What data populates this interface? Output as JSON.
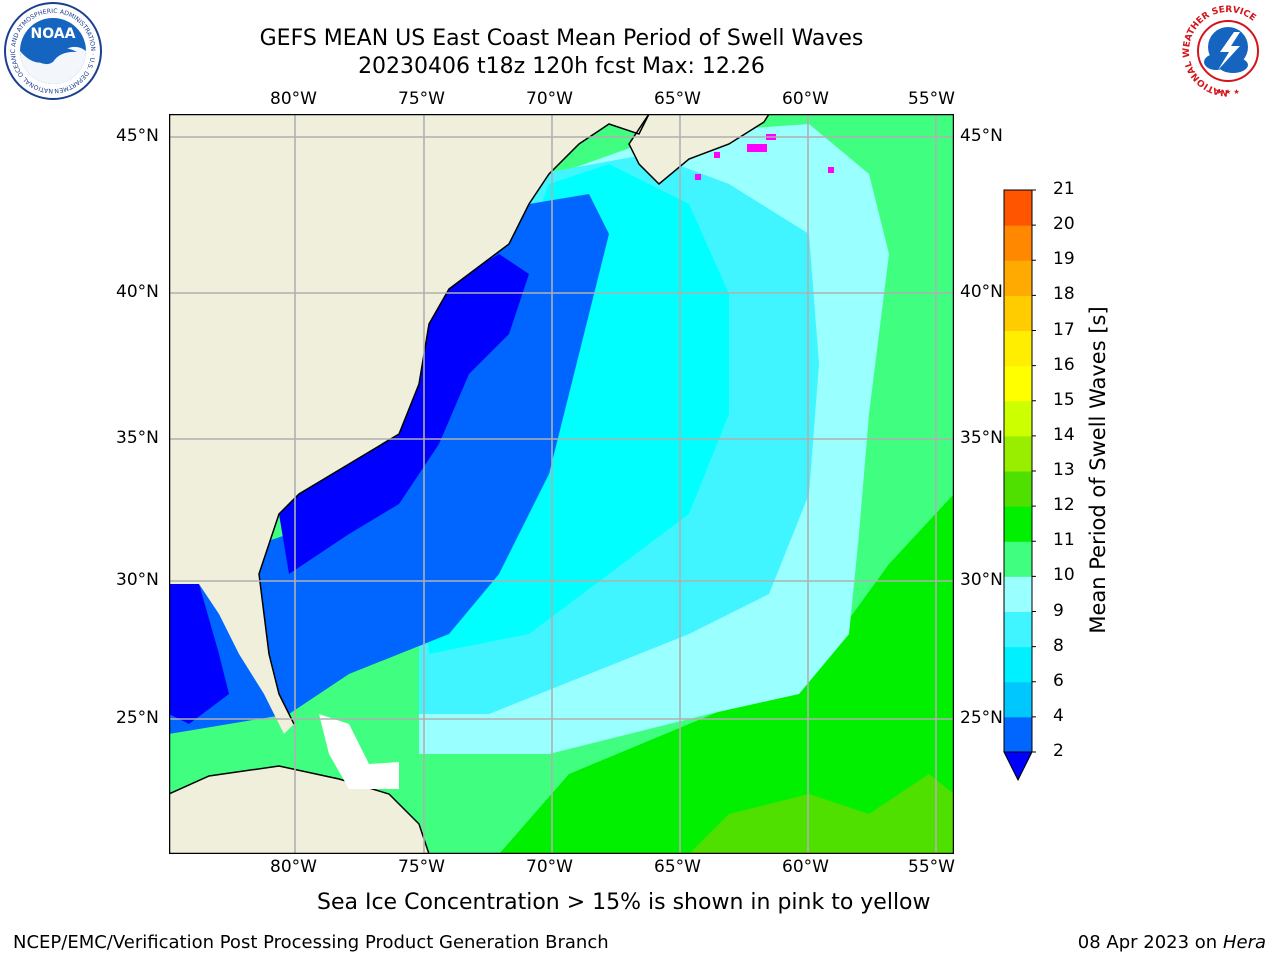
{
  "header": {
    "title_line1": "GEFS MEAN US East Coast Mean Period of Swell Waves",
    "title_line2": "20230406 t18z 120h fcst   Max: 12.26"
  },
  "logos": {
    "left": {
      "name": "noaa-logo",
      "text": "NOAA",
      "ring_text": "NATIONAL OCEANIC AND ATMOSPHERIC ADMINISTRATION · U.S. DEPARTMENT OF COMMERCE"
    },
    "right": {
      "name": "nws-logo",
      "ring_text": "NATIONAL WEATHER SERVICE"
    }
  },
  "map": {
    "lon_labels": [
      "80°W",
      "75°W",
      "70°W",
      "65°W",
      "60°W",
      "55°W"
    ],
    "lat_labels": [
      "45°N",
      "40°N",
      "35°N",
      "30°N",
      "25°N"
    ]
  },
  "colorbar": {
    "label": "Mean Period of Swell Waves [s]",
    "ticks": [
      "2",
      "4",
      "6",
      "8",
      "9",
      "10",
      "11",
      "12",
      "13",
      "14",
      "15",
      "16",
      "17",
      "18",
      "19",
      "20",
      "21"
    ],
    "colors": [
      "#0066ff",
      "#00c8ff",
      "#00f0ff",
      "#40f5ff",
      "#99ffff",
      "#40ff80",
      "#00f000",
      "#50e000",
      "#99ee00",
      "#ccff00",
      "#ffff00",
      "#ffee00",
      "#ffcc00",
      "#ffaa00",
      "#ff8800",
      "#ff5500",
      "#ff2200",
      "#ff0000"
    ],
    "under_color": "#0000ff"
  },
  "colors": {
    "land": "#efefdc",
    "ocean_dark": "#0000ff",
    "ocean_blue": "#0066ff",
    "ocean_cyan": "#00ffff",
    "ocean_light": "#99ffff",
    "swell_green": "#40ff80",
    "swell_bright": "#00f000",
    "ice": "#ff00ff",
    "grid": "#b0b0b0"
  },
  "subtitle": "Sea Ice Concentration > 15% is shown in pink to yellow",
  "footer": {
    "left": "NCEP/EMC/Verification Post Processing Product Generation Branch",
    "date": "08 Apr 2023 on ",
    "host": "Hera"
  }
}
